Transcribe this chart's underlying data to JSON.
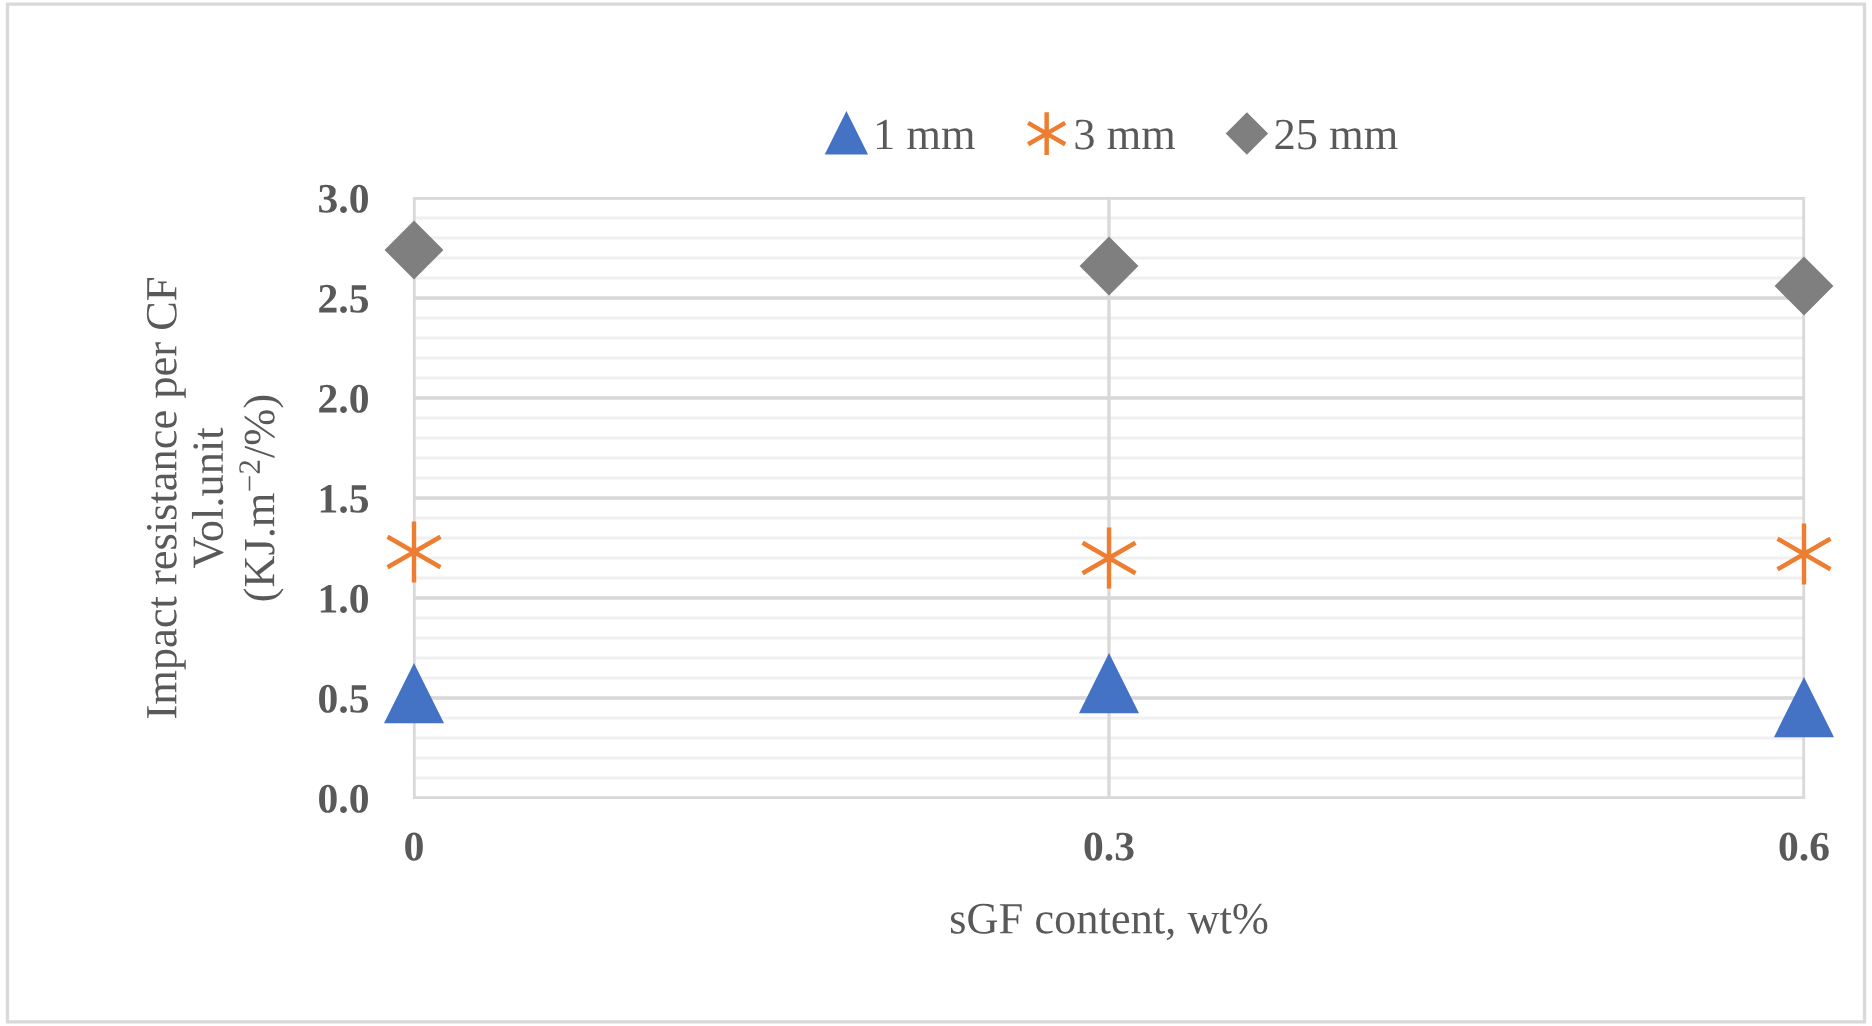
{
  "chart_data": {
    "type": "scatter",
    "xlabel": "sGF content, wt%",
    "ylabel": "Impact resistance per CF\nVol.unit\n(KJ.m$^{−2}$/%)",
    "x": [
      0,
      0.3,
      0.6
    ],
    "xlim": [
      0,
      0.6
    ],
    "xticks": [
      0,
      0.3,
      0.6
    ],
    "ylim": [
      0,
      3.0
    ],
    "yticks": [
      {
        "value": 0,
        "label": "0.0"
      },
      {
        "value": 0.5,
        "label": "0.5"
      },
      {
        "value": 1.0,
        "label": "1.0"
      },
      {
        "value": 1.5,
        "label": "1.5"
      },
      {
        "value": 2.0,
        "label": "2.0"
      },
      {
        "value": 2.5,
        "label": "2.5"
      },
      {
        "value": 3.0,
        "label": "3.0"
      }
    ],
    "grid": true,
    "legend": "top",
    "series": [
      {
        "name": "1 mm",
        "color": "#4472c4",
        "marker": "triangle",
        "values": [
          0.52,
          0.57,
          0.45
        ]
      },
      {
        "name": "3 mm",
        "color": "#ed7d31",
        "marker": "cross",
        "values": [
          1.23,
          1.2,
          1.22
        ]
      },
      {
        "name": "25 mm",
        "color": "#7f7f7f",
        "marker": "diamond",
        "values": [
          2.74,
          2.66,
          2.56
        ]
      }
    ]
  }
}
